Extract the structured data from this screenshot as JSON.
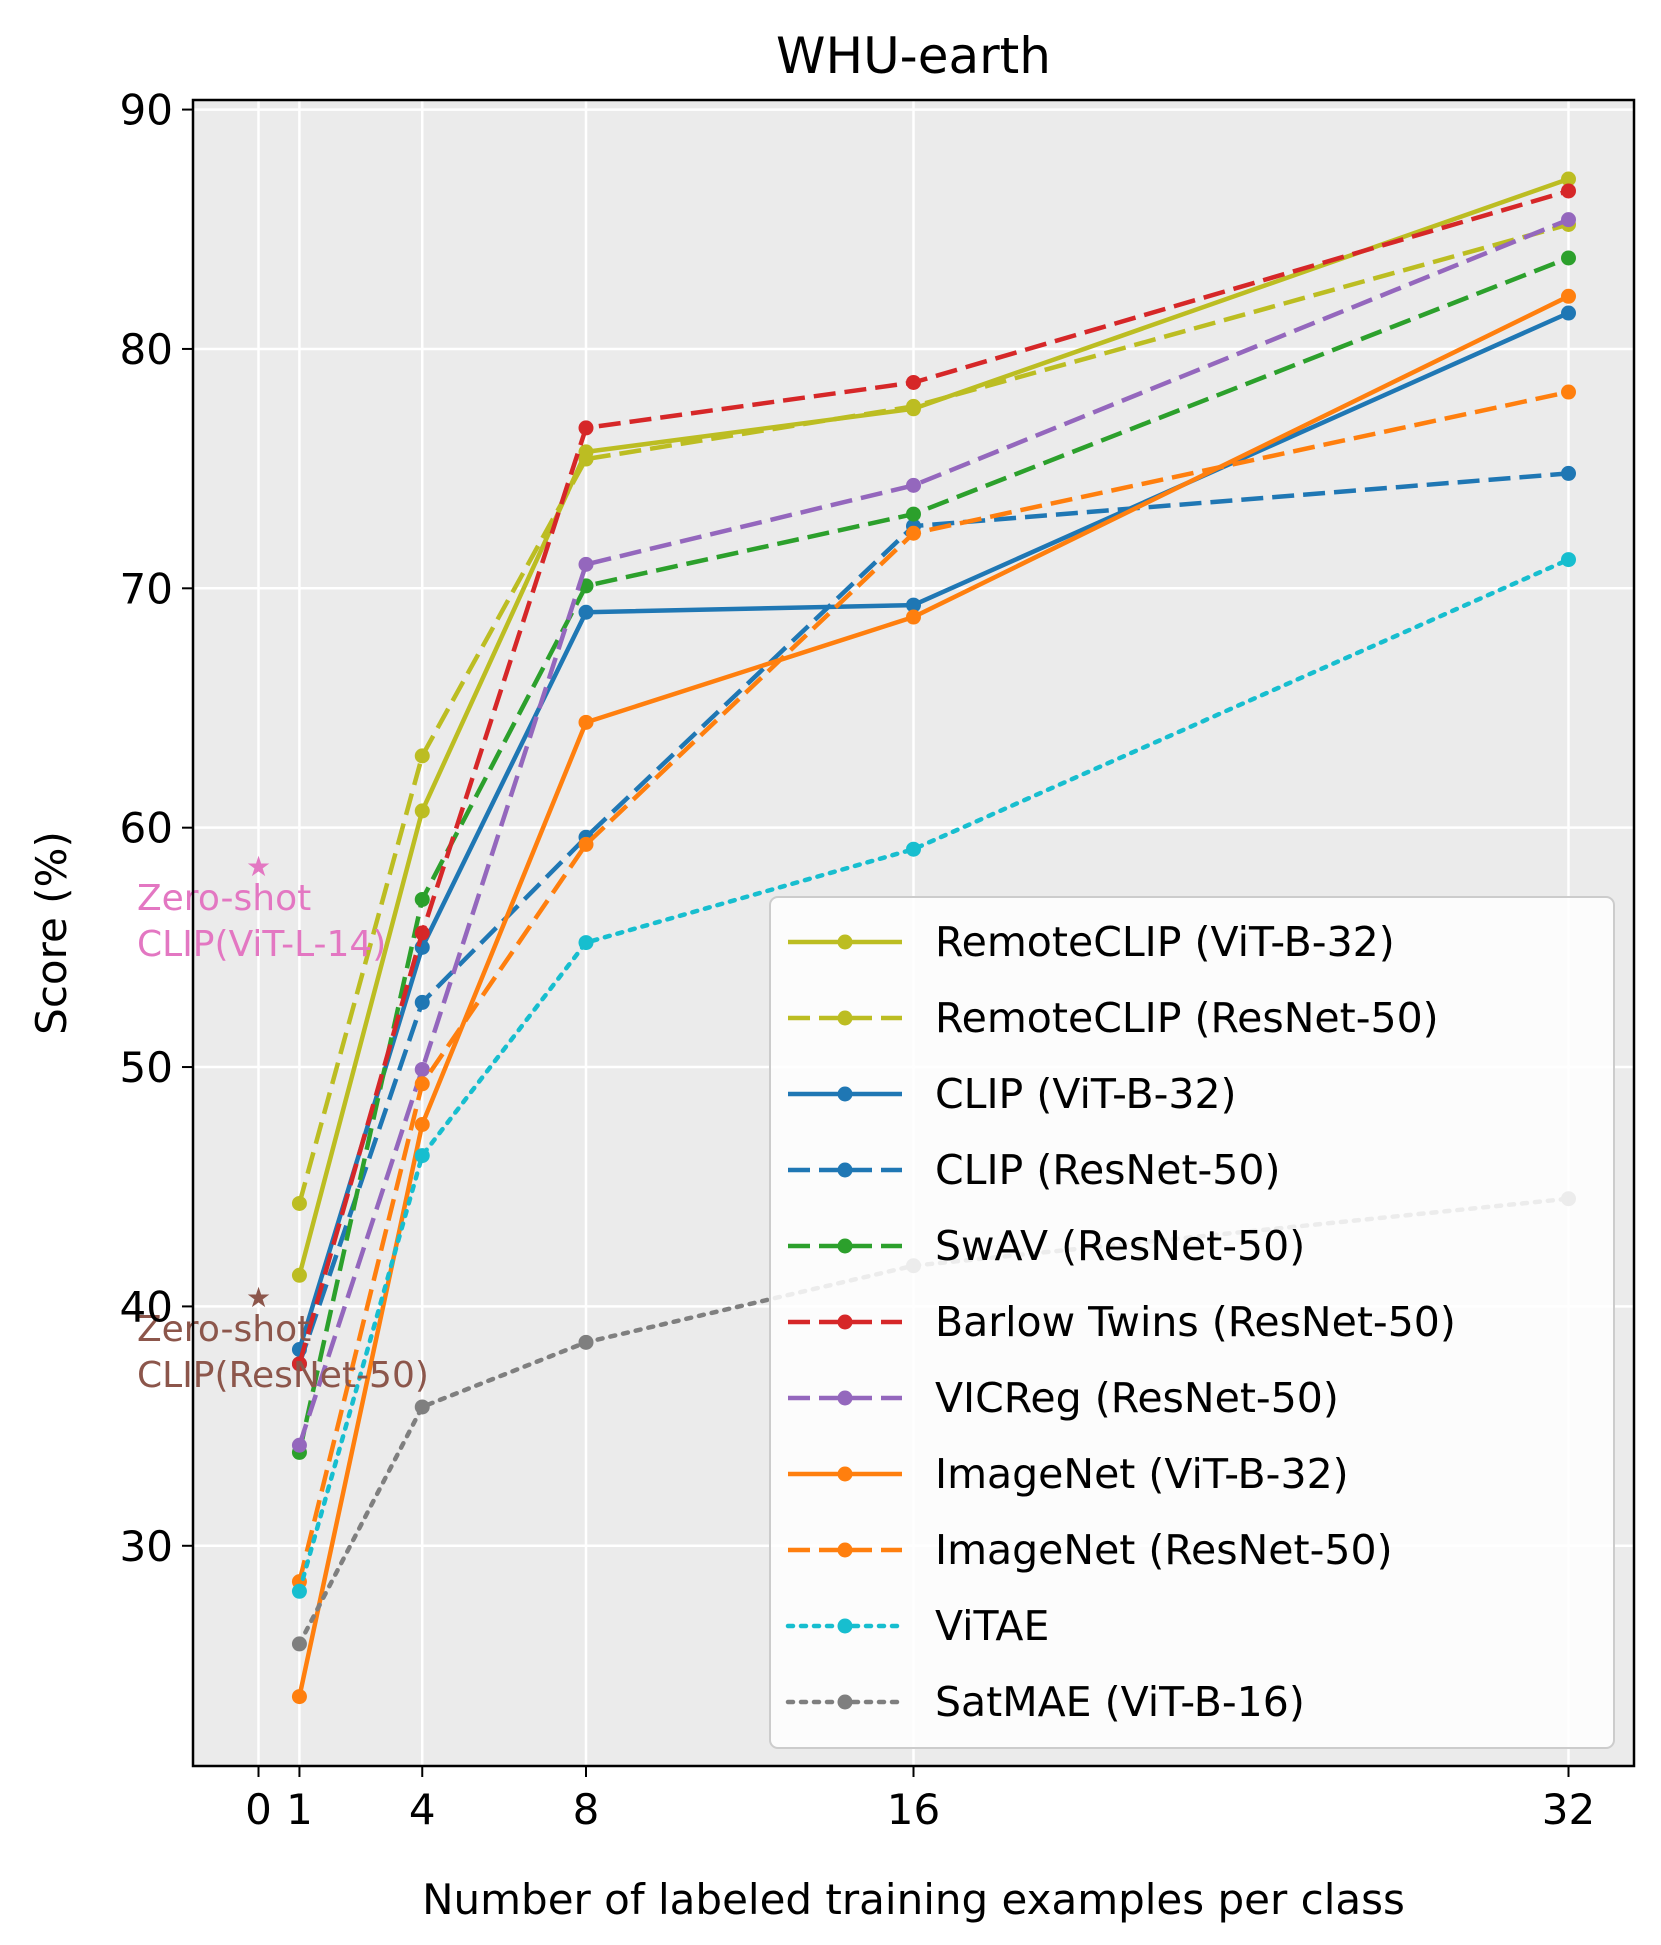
{
  "chart_data": {
    "type": "line",
    "title": "WHU-earth",
    "xlabel": "Number of labeled training examples per class",
    "ylabel": "Score (%)",
    "x_ticks": [
      0,
      1,
      4,
      8,
      16,
      32
    ],
    "y_ticks": [
      30,
      40,
      50,
      60,
      70,
      80,
      90
    ],
    "xlim": [
      -1.6,
      33.6
    ],
    "ylim": [
      20.8,
      90.4
    ],
    "grid": true,
    "legend_position": "lower-right",
    "x": [
      1,
      4,
      8,
      16,
      32
    ],
    "series": [
      {
        "name": "RemoteCLIP (ViT-B-32)",
        "color": "#bcbd22",
        "style": "solid",
        "values": [
          41.3,
          60.7,
          75.7,
          77.5,
          87.1
        ]
      },
      {
        "name": "RemoteCLIP (ResNet-50)",
        "color": "#bcbd22",
        "style": "dashed",
        "values": [
          44.3,
          63.0,
          75.4,
          77.6,
          85.2
        ]
      },
      {
        "name": "CLIP (ViT-B-32)",
        "color": "#1f77b4",
        "style": "solid",
        "values": [
          38.2,
          55.0,
          69.0,
          69.3,
          81.5
        ]
      },
      {
        "name": "CLIP (ResNet-50)",
        "color": "#1f77b4",
        "style": "dashed",
        "values": [
          37.6,
          52.7,
          59.6,
          72.6,
          74.8
        ]
      },
      {
        "name": "SwAV (ResNet-50)",
        "color": "#2ca02c",
        "style": "dashed",
        "values": [
          33.9,
          57.0,
          70.1,
          73.1,
          83.8
        ]
      },
      {
        "name": "Barlow Twins (ResNet-50)",
        "color": "#d62728",
        "style": "dashed",
        "values": [
          37.6,
          55.6,
          76.7,
          78.6,
          86.6
        ]
      },
      {
        "name": "VICReg (ResNet-50)",
        "color": "#9467bd",
        "style": "dashed",
        "values": [
          34.2,
          49.9,
          71.0,
          74.3,
          85.4
        ]
      },
      {
        "name": "ImageNet (ViT-B-32)",
        "color": "#ff7f0e",
        "style": "solid",
        "values": [
          23.7,
          47.6,
          64.4,
          68.8,
          82.2
        ]
      },
      {
        "name": "ImageNet (ResNet-50)",
        "color": "#ff7f0e",
        "style": "dashed",
        "values": [
          28.5,
          49.3,
          59.3,
          72.3,
          78.2
        ]
      },
      {
        "name": "ViTAE",
        "color": "#17becf",
        "style": "dotted",
        "values": [
          28.1,
          46.3,
          55.2,
          59.1,
          71.2
        ]
      },
      {
        "name": "SatMAE (ViT-B-16)",
        "color": "#7f7f7f",
        "style": "dotted",
        "values": [
          25.9,
          35.8,
          38.5,
          41.7,
          44.5
        ]
      }
    ],
    "zero_shot": [
      {
        "x": 0,
        "y": 58.4,
        "color": "#e377c2",
        "lines": [
          "Zero-shot",
          "CLIP(ViT-L-14)"
        ]
      },
      {
        "x": 0,
        "y": 40.4,
        "color": "#8c564b",
        "lines": [
          "Zero-shot",
          "CLIP(ResNet-50)"
        ]
      }
    ]
  }
}
